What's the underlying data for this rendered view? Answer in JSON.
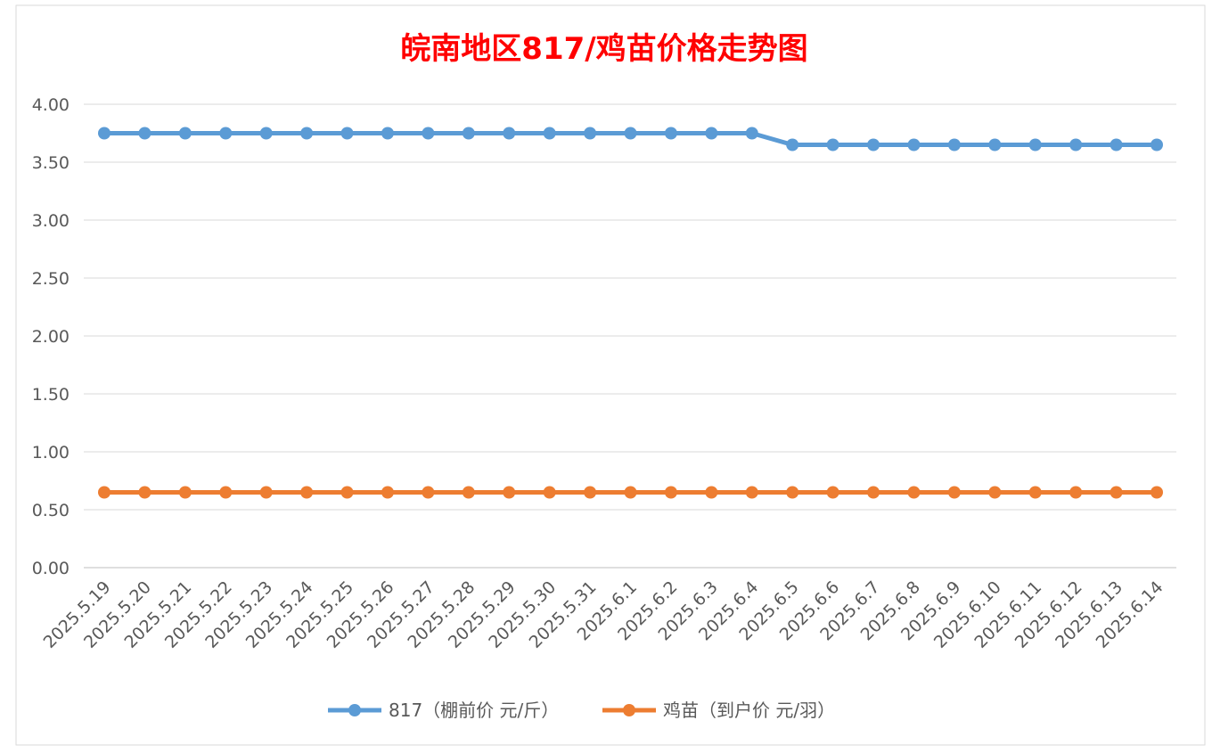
{
  "chart_data": {
    "type": "line",
    "title": "皖南地区817/鸡苗价格走势图",
    "title_color": "#ff0000",
    "xlabel": "",
    "ylabel": "",
    "ylim": [
      0,
      4
    ],
    "yticks": [
      "0.00",
      "0.50",
      "1.00",
      "1.50",
      "2.00",
      "2.50",
      "3.00",
      "3.50",
      "4.00"
    ],
    "grid": true,
    "legend_position": "bottom",
    "categories": [
      "2025.5.19",
      "2025.5.20",
      "2025.5.21",
      "2025.5.22",
      "2025.5.23",
      "2025.5.24",
      "2025.5.25",
      "2025.5.26",
      "2025.5.27",
      "2025.5.28",
      "2025.5.29",
      "2025.5.30",
      "2025.5.31",
      "2025.6.1",
      "2025.6.2",
      "2025.6.3",
      "2025.6.4",
      "2025.6.5",
      "2025.6.6",
      "2025.6.7",
      "2025.6.8",
      "2025.6.9",
      "2025.6.10",
      "2025.6.11",
      "2025.6.12",
      "2025.6.13",
      "2025.6.14"
    ],
    "series": [
      {
        "name": "817（棚前价 元/斤）",
        "color": "#5b9bd5",
        "values": [
          3.75,
          3.75,
          3.75,
          3.75,
          3.75,
          3.75,
          3.75,
          3.75,
          3.75,
          3.75,
          3.75,
          3.75,
          3.75,
          3.75,
          3.75,
          3.75,
          3.75,
          3.65,
          3.65,
          3.65,
          3.65,
          3.65,
          3.65,
          3.65,
          3.65,
          3.65,
          3.65
        ]
      },
      {
        "name": "鸡苗（到户价 元/羽）",
        "color": "#ed7d31",
        "values": [
          0.65,
          0.65,
          0.65,
          0.65,
          0.65,
          0.65,
          0.65,
          0.65,
          0.65,
          0.65,
          0.65,
          0.65,
          0.65,
          0.65,
          0.65,
          0.65,
          0.65,
          0.65,
          0.65,
          0.65,
          0.65,
          0.65,
          0.65,
          0.65,
          0.65,
          0.65,
          0.65
        ]
      }
    ]
  }
}
